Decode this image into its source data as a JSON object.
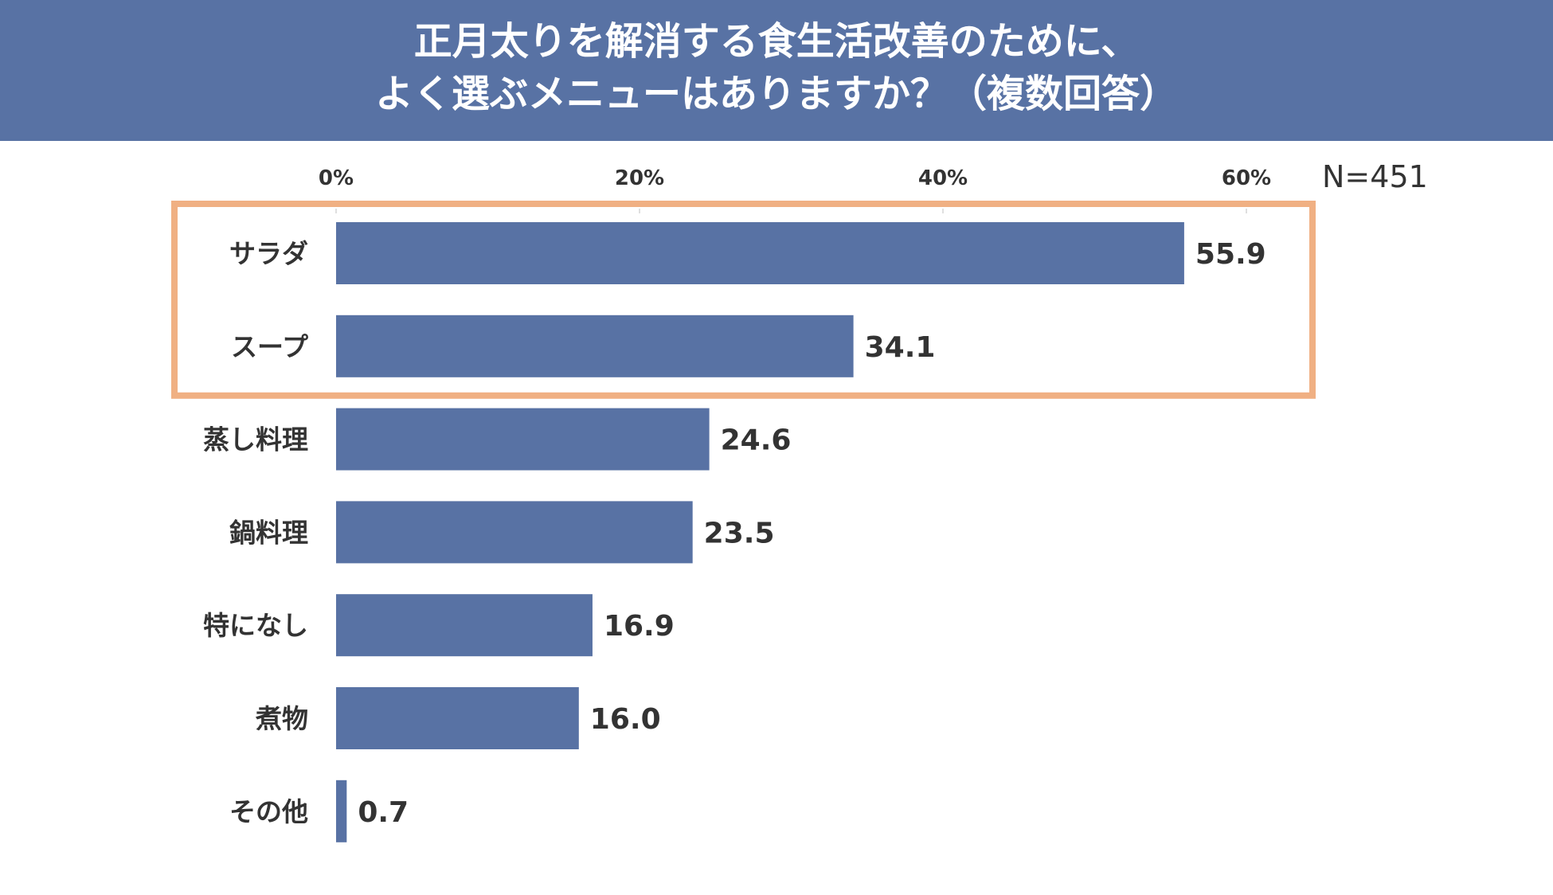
{
  "header": {
    "title_line1": "正月太りを解消する食生活改善のために、",
    "title_line2": "よく選ぶメニューはありますか？（複数回答）"
  },
  "sample_size": "N=451",
  "highlight": {
    "color": "#F0B083",
    "categories": [
      "サラダ",
      "スープ"
    ]
  },
  "colors": {
    "header_bg": "#5872A4",
    "bar": "#5872A4",
    "text": "#333333"
  },
  "chart_data": {
    "type": "bar",
    "orientation": "horizontal",
    "categories": [
      "サラダ",
      "スープ",
      "蒸し料理",
      "鍋料理",
      "特になし",
      "煮物",
      "その他"
    ],
    "values": [
      55.9,
      34.1,
      24.6,
      23.5,
      16.9,
      16.0,
      0.7
    ],
    "value_labels": [
      "55.9",
      "34.1",
      "24.6",
      "23.5",
      "16.9",
      "16.0",
      "0.7"
    ],
    "x_ticks": [
      0,
      20,
      40,
      60
    ],
    "x_tick_labels": [
      "0%",
      "20%",
      "40%",
      "60%"
    ],
    "xlim": [
      0,
      60
    ],
    "grid": false,
    "axis_position": "top"
  }
}
